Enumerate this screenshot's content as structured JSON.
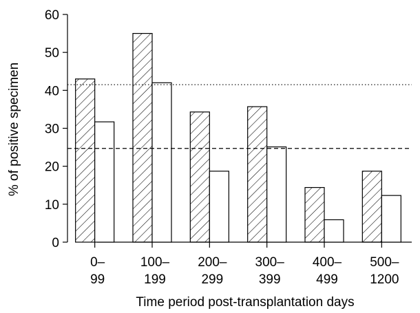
{
  "chart_data": {
    "type": "bar",
    "title": "",
    "xlabel": "Time period post-transplantation  days",
    "ylabel": "% of positive specimen",
    "ylim": [
      0,
      60
    ],
    "yticks": [
      "0",
      "10",
      "20",
      "30",
      "40",
      "50",
      "60"
    ],
    "categories": [
      [
        "0–",
        "99"
      ],
      [
        "100–",
        "199"
      ],
      [
        "200–",
        "299"
      ],
      [
        "300–",
        "399"
      ],
      [
        "400–",
        "499"
      ],
      [
        "500–",
        "1200"
      ]
    ],
    "series": [
      {
        "pattern": "hatched",
        "values": [
          43,
          55,
          34.3,
          35.7,
          14.4,
          18.7
        ]
      },
      {
        "pattern": "open",
        "values": [
          31.7,
          42,
          18.7,
          25.1,
          5.9,
          12.3
        ]
      }
    ],
    "reference_lines": [
      {
        "style": "dotted",
        "value": 41.5
      },
      {
        "style": "dashed",
        "value": 24.7
      }
    ],
    "grid": false,
    "legend": "none"
  }
}
